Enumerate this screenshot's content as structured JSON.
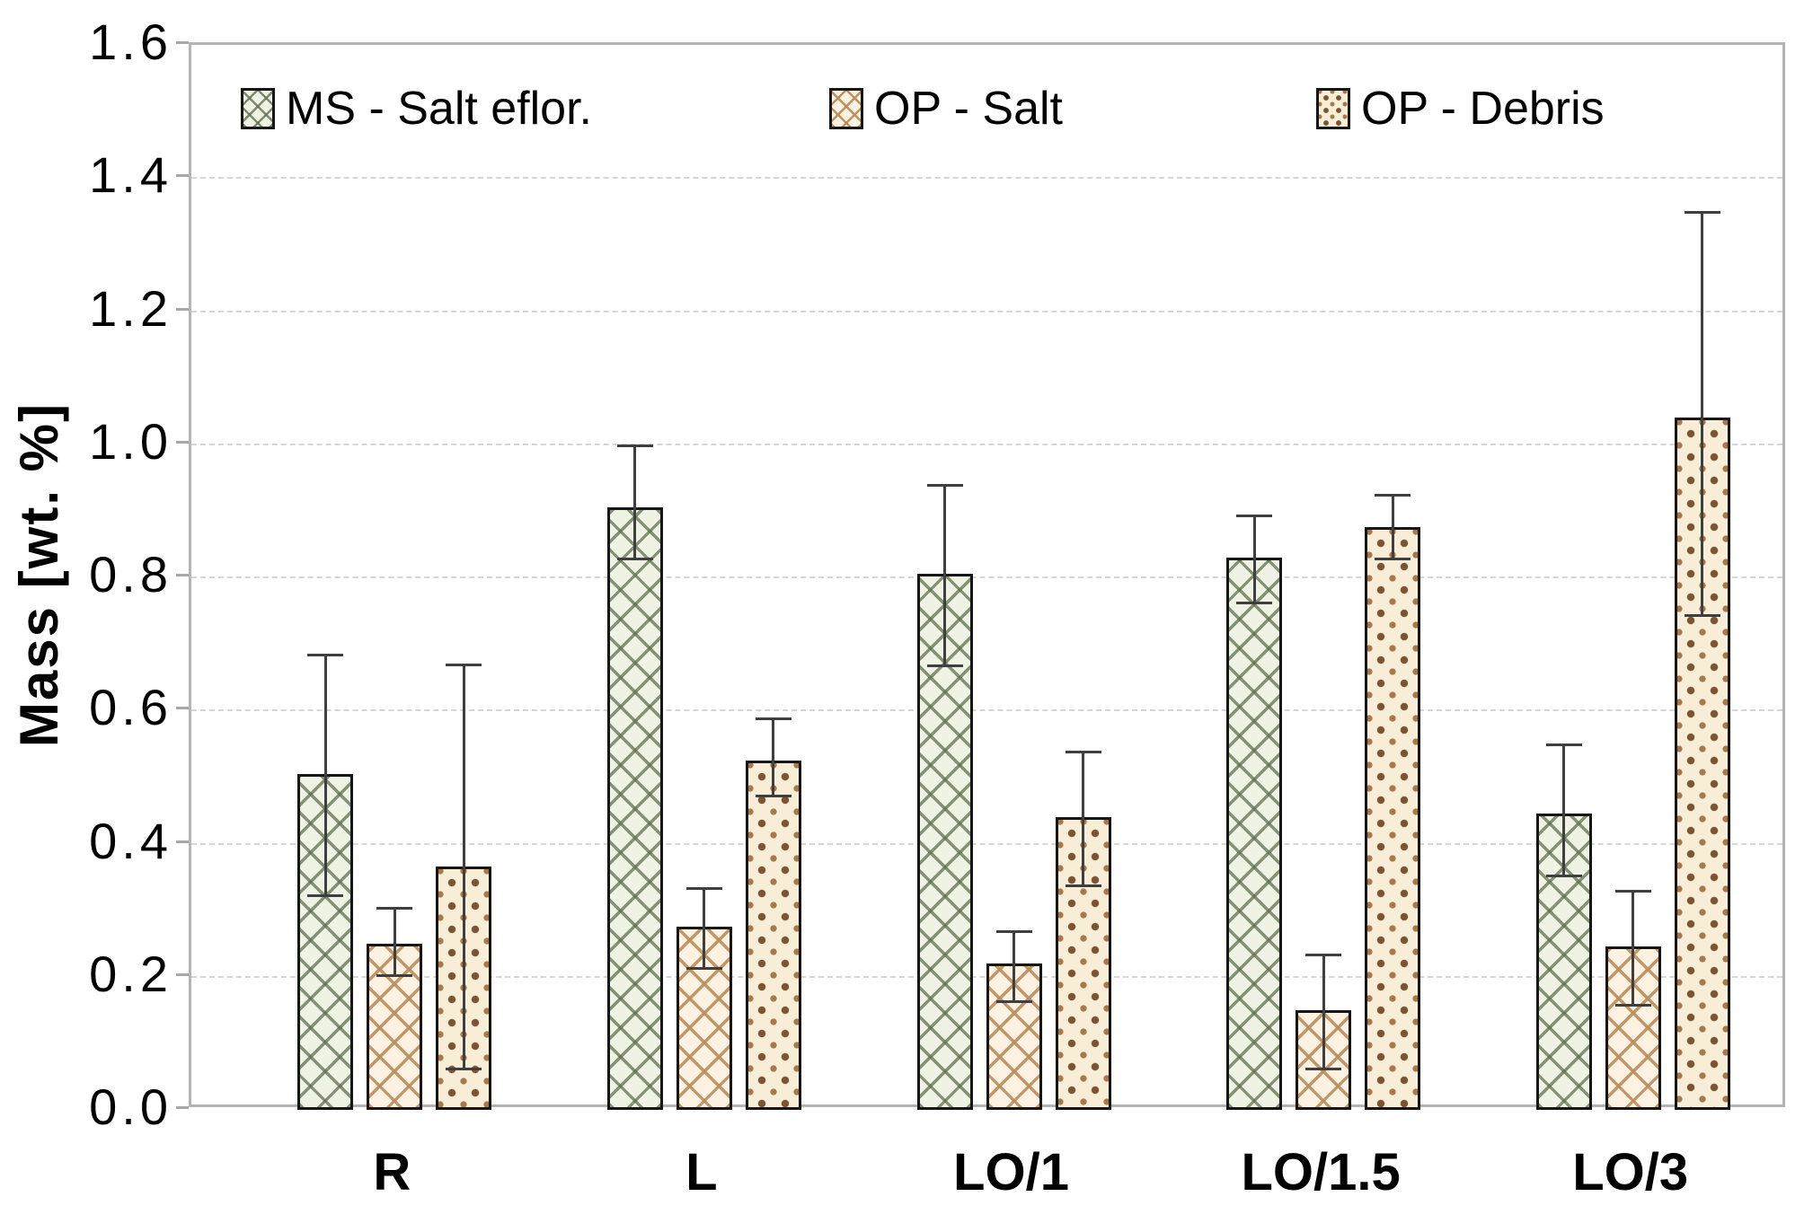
{
  "figure": {
    "background": "#ffffff",
    "axis_frame_color": "#b4b4b4",
    "gridline_color": "#d6d6d6",
    "error_bar_color": "#3f3f3f",
    "bar_border_color": "#161616"
  },
  "chart_data": {
    "type": "bar",
    "title": "",
    "xlabel": "",
    "ylabel": "Mass [wt. %]",
    "ylim": [
      0,
      1.6
    ],
    "ytick_step": 0.2,
    "y_tick_labels": [
      "1.6",
      "1.4",
      "1.2",
      "1.0",
      "0.8",
      "0.6",
      "0.4",
      "0.2",
      "0.0"
    ],
    "grid": "horizontal, dashed, on",
    "legend_position": "top-inside-horizontal",
    "categories": [
      "R",
      "L",
      "LO/1",
      "LO/1.5",
      "LO/3"
    ],
    "series": [
      {
        "name": "MS - Salt eflor.",
        "pattern": "green-crosshatch",
        "fill": "#eef3e3",
        "pattern_color": "#5f7050",
        "values": [
          0.505,
          0.905,
          0.805,
          0.83,
          0.445
        ],
        "error_low": [
          0.32,
          0.825,
          0.665,
          0.76,
          0.35
        ],
        "error_high": [
          0.685,
          1.0,
          0.94,
          0.895,
          0.55
        ]
      },
      {
        "name": "OP - Salt",
        "pattern": "tan-crosshatch",
        "fill": "#fdf2e2",
        "pattern_color": "#ba8d5c",
        "values": [
          0.25,
          0.275,
          0.22,
          0.15,
          0.245
        ],
        "error_low": [
          0.2,
          0.21,
          0.16,
          0.06,
          0.155
        ],
        "error_high": [
          0.305,
          0.335,
          0.27,
          0.235,
          0.33
        ]
      },
      {
        "name": "OP - Debris",
        "pattern": "brown-dots",
        "fill": "#f8eed8",
        "pattern_color": "#7c5434",
        "values": [
          0.365,
          0.525,
          0.44,
          0.875,
          1.04
        ],
        "error_low": [
          0.06,
          0.47,
          0.335,
          0.825,
          0.74
        ],
        "error_high": [
          0.67,
          0.59,
          0.54,
          0.925,
          1.35
        ]
      }
    ]
  }
}
